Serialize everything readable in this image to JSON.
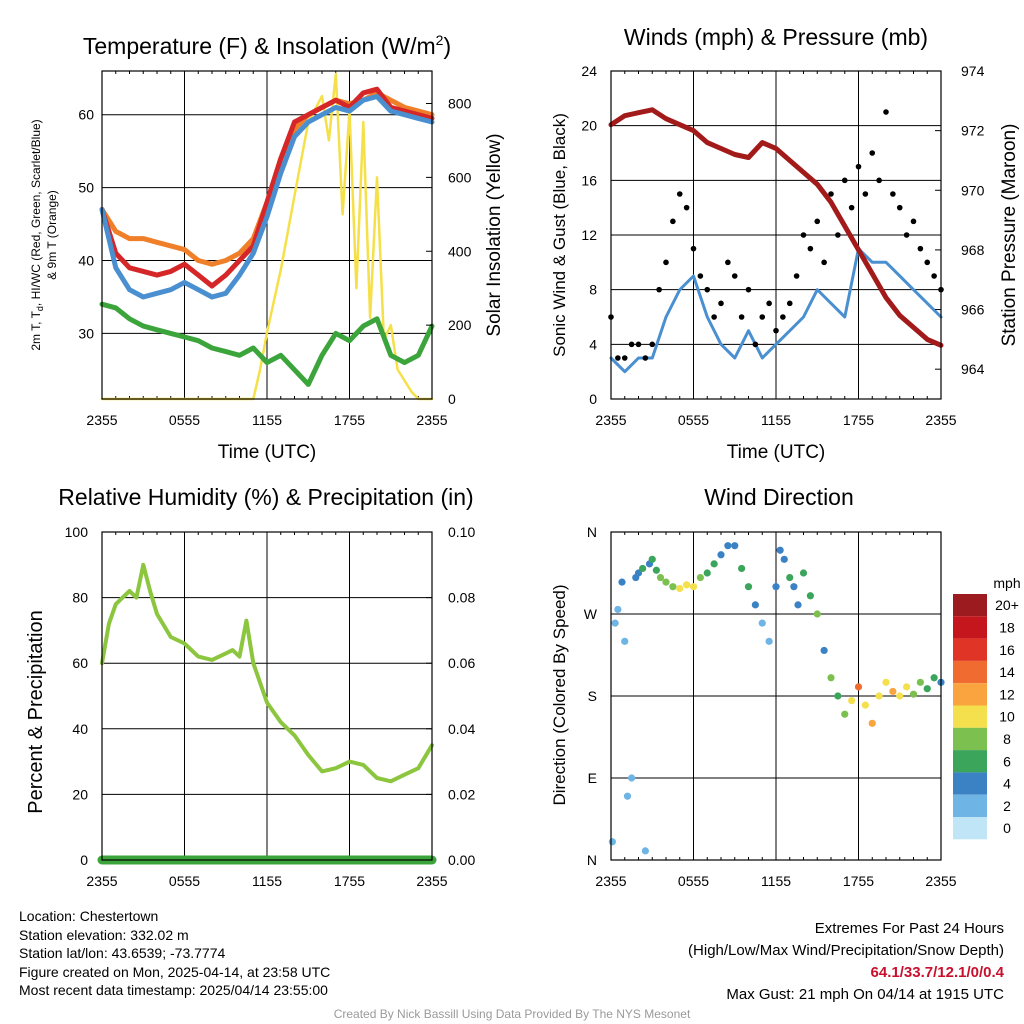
{
  "x_ticks": [
    "2355",
    "0555",
    "1155",
    "1755",
    "2355"
  ],
  "chart_data": [
    {
      "id": "temp",
      "type": "line",
      "title": "Temperature (F) & Insolation (W/m",
      "title_sup": "2",
      "title_end": ")",
      "xlabel": "Time (UTC)",
      "ylabel_line1": "2m T, T",
      "ylabel_sub": "d",
      "ylabel_line1_end": ", HI/WC (Red, Green, Scarlet/Blue)",
      "ylabel_line2": "& 9m T (Orange)",
      "y2label": "Solar Insolation (Yellow)",
      "ylim": [
        21,
        66
      ],
      "y2lim": [
        0,
        888
      ],
      "yticks": [
        30,
        40,
        50,
        60
      ],
      "y2ticks": [
        0,
        200,
        400,
        600,
        800
      ],
      "grid": true,
      "series": [
        {
          "key": "t9m",
          "color": "#f07f2a",
          "axis": "left",
          "x": [
            0,
            1,
            2,
            3,
            4,
            5,
            6,
            7,
            8,
            9,
            10,
            11,
            12,
            13,
            14,
            15,
            16,
            17,
            18,
            19,
            20,
            21,
            22,
            23,
            24
          ],
          "values": [
            47,
            44,
            43,
            43,
            42.5,
            42,
            41.5,
            40,
            39.5,
            40,
            41,
            43,
            48,
            54,
            58,
            60,
            61,
            62,
            61.5,
            62,
            63,
            62,
            61,
            60.5,
            60
          ]
        },
        {
          "key": "t2m",
          "color": "#d62728",
          "axis": "left",
          "x": [
            0,
            1,
            2,
            3,
            4,
            5,
            6,
            7,
            8,
            9,
            10,
            11,
            12,
            13,
            14,
            15,
            16,
            17,
            18,
            19,
            20,
            21,
            22,
            23,
            24
          ],
          "values": [
            47,
            41,
            39,
            38.5,
            38,
            38.5,
            39.5,
            38,
            36.5,
            38,
            40,
            42,
            48,
            54,
            59,
            60,
            61,
            62,
            61,
            63,
            63.5,
            61,
            60.5,
            60,
            59.5
          ]
        },
        {
          "key": "hiwc",
          "color": "#4a90d0",
          "axis": "left",
          "x": [
            0,
            1,
            2,
            3,
            4,
            5,
            6,
            7,
            8,
            9,
            10,
            11,
            12,
            13,
            14,
            15,
            16,
            17,
            18,
            19,
            20,
            21,
            22,
            23,
            24
          ],
          "values": [
            47,
            39,
            36,
            35,
            35.5,
            36,
            37,
            36,
            35,
            35.5,
            38,
            41,
            46,
            52,
            57,
            59,
            60,
            61,
            60.5,
            62,
            62.5,
            60.5,
            60,
            59.5,
            59
          ]
        },
        {
          "key": "td",
          "color": "#3ba53b",
          "axis": "left",
          "x": [
            0,
            1,
            2,
            3,
            4,
            5,
            6,
            7,
            8,
            9,
            10,
            11,
            12,
            13,
            14,
            15,
            16,
            17,
            18,
            19,
            20,
            21,
            22,
            23,
            24
          ],
          "values": [
            34,
            33.5,
            32,
            31,
            30.5,
            30,
            29.5,
            29,
            28,
            27.5,
            27,
            28,
            26,
            27,
            25,
            23,
            27,
            30,
            29,
            31,
            32,
            27,
            26,
            27,
            31
          ]
        },
        {
          "key": "solar",
          "color": "#f5e04a",
          "axis": "right",
          "x": [
            0,
            2,
            4,
            6,
            8,
            10,
            11,
            11.5,
            12,
            13,
            14,
            15,
            16,
            16.5,
            17,
            17.5,
            18,
            18.5,
            19,
            19.5,
            20,
            20.5,
            21,
            21.5,
            22,
            22.5,
            23,
            23.5,
            24
          ],
          "values": [
            0,
            0,
            0,
            0,
            0,
            0,
            0,
            80,
            180,
            350,
            550,
            750,
            820,
            700,
            880,
            500,
            780,
            300,
            750,
            220,
            600,
            160,
            200,
            80,
            50,
            20,
            0,
            0,
            0
          ]
        }
      ]
    },
    {
      "id": "wind",
      "type": "line",
      "title": "Winds (mph) & Pressure (mb)",
      "xlabel": "Time (UTC)",
      "ylabel": "Sonic Wind & Gust (Blue, Black)",
      "y2label": "Station Pressure (Maroon)",
      "ylim": [
        0,
        24
      ],
      "y2lim": [
        963,
        974
      ],
      "yticks": [
        0,
        4,
        8,
        12,
        16,
        20,
        24
      ],
      "y2ticks": [
        964,
        966,
        968,
        970,
        972,
        974
      ],
      "grid": true,
      "series": [
        {
          "key": "sonic",
          "color": "#4a90d0",
          "axis": "left",
          "x": [
            0,
            1,
            2,
            3,
            4,
            5,
            6,
            7,
            8,
            9,
            10,
            11,
            12,
            13,
            14,
            15,
            16,
            17,
            18,
            19,
            20,
            21,
            22,
            23,
            24
          ],
          "values": [
            3,
            2,
            3,
            3,
            6,
            8,
            9,
            6,
            4,
            3,
            5,
            3,
            4,
            5,
            6,
            8,
            7,
            6,
            11,
            10,
            10,
            9,
            8,
            7,
            6
          ]
        },
        {
          "key": "gust",
          "color": "#000000",
          "axis": "left",
          "x": [
            0,
            0.5,
            1,
            1.5,
            2,
            2.5,
            3,
            3.5,
            4,
            4.5,
            5,
            5.5,
            6,
            6.5,
            7,
            7.5,
            8,
            8.5,
            9,
            9.5,
            10,
            10.5,
            11,
            11.5,
            12,
            12.5,
            13,
            13.5,
            14,
            14.5,
            15,
            15.5,
            16,
            16.5,
            17,
            17.5,
            18,
            18.5,
            19,
            19.5,
            20,
            20.5,
            21,
            21.5,
            22,
            22.5,
            23,
            23.5,
            24
          ],
          "values": [
            6,
            3,
            3,
            4,
            4,
            3,
            4,
            8,
            10,
            13,
            15,
            14,
            11,
            9,
            8,
            6,
            7,
            10,
            9,
            6,
            8,
            4,
            6,
            7,
            5,
            6,
            7,
            9,
            12,
            11,
            13,
            10,
            15,
            12,
            16,
            14,
            17,
            15,
            18,
            16,
            21,
            15,
            14,
            12,
            13,
            11,
            10,
            9,
            8
          ]
        },
        {
          "key": "pressure",
          "color": "#a31a1a",
          "axis": "right",
          "x": [
            0,
            1,
            2,
            3,
            4,
            5,
            6,
            7,
            8,
            9,
            10,
            11,
            12,
            13,
            14,
            15,
            16,
            17,
            18,
            19,
            20,
            21,
            22,
            23,
            24
          ],
          "values": [
            972.2,
            972.5,
            972.6,
            972.7,
            972.4,
            972.2,
            972.0,
            971.6,
            971.4,
            971.2,
            971.1,
            971.6,
            971.4,
            971.0,
            970.6,
            970.2,
            969.6,
            968.8,
            968.0,
            967.2,
            966.4,
            965.8,
            965.4,
            965.0,
            964.8
          ]
        }
      ]
    },
    {
      "id": "rh",
      "type": "line",
      "title": "Relative Humidity (%) & Precipitation (in)",
      "ylabel": "Percent & Precipitation",
      "ylim": [
        0,
        100
      ],
      "y2lim": [
        0,
        0.1
      ],
      "yticks": [
        0,
        20,
        40,
        60,
        80,
        100
      ],
      "y2ticks": [
        "0.00",
        "0.02",
        "0.04",
        "0.06",
        "0.08",
        "0.10"
      ],
      "grid": true,
      "series": [
        {
          "key": "rh",
          "color": "#8cc63f",
          "axis": "left",
          "x": [
            0,
            0.5,
            1,
            1.5,
            2,
            2.5,
            3,
            3.5,
            4,
            5,
            6,
            7,
            8,
            9,
            9.5,
            10,
            10.5,
            11,
            12,
            13,
            14,
            15,
            16,
            17,
            18,
            19,
            20,
            21,
            22,
            23,
            24
          ],
          "values": [
            60,
            72,
            78,
            80,
            82,
            80,
            90,
            82,
            75,
            68,
            66,
            62,
            61,
            63,
            64,
            62,
            73,
            60,
            48,
            42,
            38,
            32,
            27,
            28,
            30,
            29,
            25,
            24,
            26,
            28,
            35
          ]
        },
        {
          "key": "precip",
          "color": "#3ba53b",
          "axis": "right",
          "x": [
            0,
            24
          ],
          "values": [
            0,
            0
          ]
        }
      ]
    },
    {
      "id": "dir",
      "type": "scatter",
      "title": "Wind Direction",
      "ylabel": "Direction (Colored By Speed)",
      "yticks": [
        "N",
        "E",
        "S",
        "W",
        "N"
      ],
      "ylim": [
        0,
        360
      ],
      "grid": true,
      "legend_title": "mph",
      "legend_labels": [
        "20+",
        "18",
        "16",
        "14",
        "12",
        "10",
        "8",
        "6",
        "4",
        "2",
        "0"
      ],
      "legend_colors": [
        "#9b1b1e",
        "#c4161c",
        "#e03526",
        "#f06b30",
        "#f9a43f",
        "#f4e04d",
        "#7cc150",
        "#3ca55c",
        "#3b82c4",
        "#6eb4e4",
        "#bfe5f7"
      ],
      "points": [
        {
          "x": 0.1,
          "dir": 20,
          "spd": 2
        },
        {
          "x": 0.3,
          "dir": 260,
          "spd": 1
        },
        {
          "x": 0.5,
          "dir": 275,
          "spd": 2
        },
        {
          "x": 0.8,
          "dir": 305,
          "spd": 3
        },
        {
          "x": 1.0,
          "dir": 240,
          "spd": 2
        },
        {
          "x": 1.2,
          "dir": 70,
          "spd": 1
        },
        {
          "x": 1.5,
          "dir": 90,
          "spd": 2
        },
        {
          "x": 1.8,
          "dir": 310,
          "spd": 3
        },
        {
          "x": 2.0,
          "dir": 315,
          "spd": 4
        },
        {
          "x": 2.3,
          "dir": 320,
          "spd": 5
        },
        {
          "x": 2.5,
          "dir": 10,
          "spd": 1
        },
        {
          "x": 2.8,
          "dir": 325,
          "spd": 4
        },
        {
          "x": 3.0,
          "dir": 330,
          "spd": 5
        },
        {
          "x": 3.3,
          "dir": 318,
          "spd": 6
        },
        {
          "x": 3.6,
          "dir": 310,
          "spd": 7
        },
        {
          "x": 4.0,
          "dir": 305,
          "spd": 7
        },
        {
          "x": 4.5,
          "dir": 300,
          "spd": 8
        },
        {
          "x": 5.0,
          "dir": 298,
          "spd": 9
        },
        {
          "x": 5.5,
          "dir": 302,
          "spd": 10
        },
        {
          "x": 6.0,
          "dir": 300,
          "spd": 9
        },
        {
          "x": 6.5,
          "dir": 310,
          "spd": 7
        },
        {
          "x": 7.0,
          "dir": 315,
          "spd": 6
        },
        {
          "x": 7.5,
          "dir": 325,
          "spd": 5
        },
        {
          "x": 8.0,
          "dir": 335,
          "spd": 4
        },
        {
          "x": 8.5,
          "dir": 345,
          "spd": 3
        },
        {
          "x": 9.0,
          "dir": 345,
          "spd": 4
        },
        {
          "x": 9.5,
          "dir": 320,
          "spd": 5
        },
        {
          "x": 10.0,
          "dir": 300,
          "spd": 6
        },
        {
          "x": 10.5,
          "dir": 280,
          "spd": 3
        },
        {
          "x": 11.0,
          "dir": 260,
          "spd": 2
        },
        {
          "x": 11.5,
          "dir": 240,
          "spd": 2
        },
        {
          "x": 12.0,
          "dir": 300,
          "spd": 3
        },
        {
          "x": 12.3,
          "dir": 340,
          "spd": 4
        },
        {
          "x": 12.6,
          "dir": 330,
          "spd": 4
        },
        {
          "x": 13.0,
          "dir": 310,
          "spd": 5
        },
        {
          "x": 13.3,
          "dir": 300,
          "spd": 4
        },
        {
          "x": 13.6,
          "dir": 280,
          "spd": 3
        },
        {
          "x": 14.0,
          "dir": 315,
          "spd": 5
        },
        {
          "x": 14.5,
          "dir": 290,
          "spd": 6
        },
        {
          "x": 15.0,
          "dir": 270,
          "spd": 7
        },
        {
          "x": 15.5,
          "dir": 230,
          "spd": 4
        },
        {
          "x": 16.0,
          "dir": 200,
          "spd": 7
        },
        {
          "x": 16.5,
          "dir": 180,
          "spd": 6
        },
        {
          "x": 17.0,
          "dir": 160,
          "spd": 8
        },
        {
          "x": 17.5,
          "dir": 175,
          "spd": 9
        },
        {
          "x": 18.0,
          "dir": 190,
          "spd": 13
        },
        {
          "x": 18.5,
          "dir": 170,
          "spd": 10
        },
        {
          "x": 19.0,
          "dir": 150,
          "spd": 11
        },
        {
          "x": 19.5,
          "dir": 180,
          "spd": 9
        },
        {
          "x": 20.0,
          "dir": 195,
          "spd": 10
        },
        {
          "x": 20.5,
          "dir": 185,
          "spd": 11
        },
        {
          "x": 21.0,
          "dir": 180,
          "spd": 9
        },
        {
          "x": 21.5,
          "dir": 190,
          "spd": 10
        },
        {
          "x": 22.0,
          "dir": 182,
          "spd": 8
        },
        {
          "x": 22.5,
          "dir": 195,
          "spd": 7
        },
        {
          "x": 23.0,
          "dir": 188,
          "spd": 6
        },
        {
          "x": 23.5,
          "dir": 200,
          "spd": 5
        },
        {
          "x": 24.0,
          "dir": 195,
          "spd": 4
        }
      ]
    }
  ],
  "info": {
    "location": "Location: Chestertown",
    "elevation": "Station elevation: 332.02 m",
    "latlon": "Station lat/lon: 43.6539; -73.7774",
    "created": "Figure created on Mon, 2025-04-14, at 23:58 UTC",
    "recent": "Most recent data timestamp: 2025/04/14 23:55:00"
  },
  "extremes": {
    "heading": "Extremes For Past 24 Hours",
    "legend": "(High/Low/Max Wind/Precipitation/Snow Depth)",
    "values": "64.1/33.7/12.1/0/0.4",
    "gust": "Max Gust: 21 mph On 04/14 at 1915 UTC"
  },
  "credit": "Created By Nick Bassill Using Data Provided By The NYS Mesonet"
}
